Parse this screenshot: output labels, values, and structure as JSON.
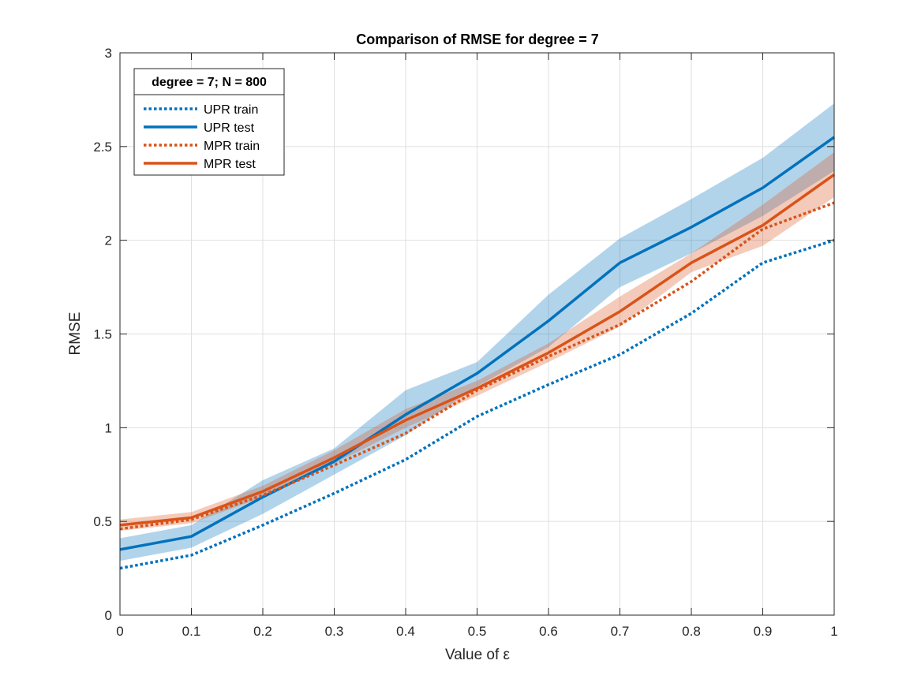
{
  "chart_data": {
    "type": "line",
    "title": "Comparison of RMSE for degree = 7",
    "xlabel": "Value of ε",
    "ylabel": "RMSE",
    "xlim": [
      0,
      1
    ],
    "ylim": [
      0,
      3
    ],
    "xticks": [
      0,
      0.1,
      0.2,
      0.3,
      0.4,
      0.5,
      0.6,
      0.7,
      0.8,
      0.9,
      1
    ],
    "xtick_labels": [
      "0",
      "0.1",
      "0.2",
      "0.3",
      "0.4",
      "0.5",
      "0.6",
      "0.7",
      "0.8",
      "0.9",
      "1"
    ],
    "yticks": [
      0,
      0.5,
      1,
      1.5,
      2,
      2.5,
      3
    ],
    "ytick_labels": [
      "0",
      "0.5",
      "1",
      "1.5",
      "2",
      "2.5",
      "3"
    ],
    "grid": true,
    "legend": {
      "title": "degree = 7; N = 800",
      "placement": "top-left"
    },
    "x": [
      0,
      0.1,
      0.2,
      0.3,
      0.4,
      0.5,
      0.6,
      0.7,
      0.8,
      0.9,
      1
    ],
    "series": [
      {
        "name": "UPR train",
        "style": "dotted",
        "color": "#0072BD",
        "values": [
          0.25,
          0.32,
          0.48,
          0.65,
          0.83,
          1.06,
          1.23,
          1.39,
          1.61,
          1.88,
          2.0
        ]
      },
      {
        "name": "UPR test",
        "style": "solid",
        "color": "#0072BD",
        "values": [
          0.35,
          0.42,
          0.63,
          0.82,
          1.07,
          1.29,
          1.57,
          1.88,
          2.07,
          2.28,
          2.55
        ],
        "band_lower": [
          0.29,
          0.36,
          0.54,
          0.75,
          0.96,
          1.22,
          1.43,
          1.75,
          1.93,
          2.13,
          2.37
        ],
        "band_upper": [
          0.41,
          0.48,
          0.72,
          0.89,
          1.2,
          1.35,
          1.71,
          2.01,
          2.22,
          2.44,
          2.73
        ]
      },
      {
        "name": "MPR train",
        "style": "dotted",
        "color": "#D95319",
        "values": [
          0.46,
          0.51,
          0.64,
          0.8,
          0.97,
          1.2,
          1.38,
          1.55,
          1.78,
          2.06,
          2.2
        ]
      },
      {
        "name": "MPR test",
        "style": "solid",
        "color": "#D95319",
        "values": [
          0.48,
          0.52,
          0.66,
          0.84,
          1.04,
          1.21,
          1.4,
          1.62,
          1.88,
          2.08,
          2.35
        ],
        "band_lower": [
          0.45,
          0.49,
          0.63,
          0.81,
          1.0,
          1.17,
          1.35,
          1.54,
          1.83,
          1.97,
          2.23
        ],
        "band_upper": [
          0.51,
          0.55,
          0.69,
          0.88,
          1.1,
          1.25,
          1.45,
          1.7,
          1.93,
          2.19,
          2.47
        ]
      }
    ]
  }
}
